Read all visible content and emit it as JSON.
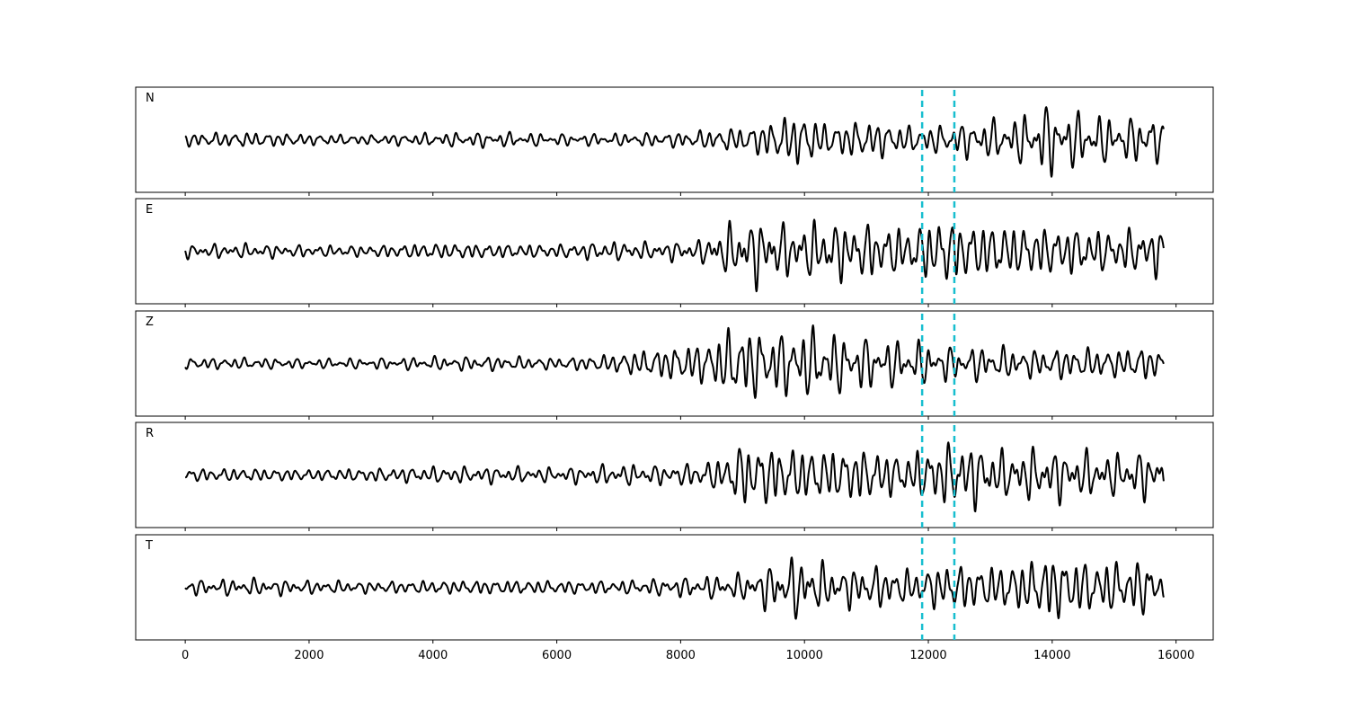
{
  "chart_data": {
    "type": "line",
    "x_ticks": [
      0,
      2000,
      4000,
      6000,
      8000,
      10000,
      12000,
      14000,
      16000
    ],
    "xlim": [
      -800,
      16600
    ],
    "sample_range": [
      0,
      15800
    ],
    "markers": [
      11900,
      12420
    ],
    "marker_color": "#17becf",
    "line_color": "#000000",
    "panels": [
      {
        "label": "N",
        "envelope": [
          [
            0,
            0.14
          ],
          [
            1000,
            0.16
          ],
          [
            2000,
            0.12
          ],
          [
            3000,
            0.1
          ],
          [
            4000,
            0.14
          ],
          [
            5000,
            0.16
          ],
          [
            6000,
            0.12
          ],
          [
            7000,
            0.13
          ],
          [
            8000,
            0.16
          ],
          [
            8600,
            0.22
          ],
          [
            9200,
            0.3
          ],
          [
            9900,
            0.58
          ],
          [
            10400,
            0.32
          ],
          [
            11000,
            0.42
          ],
          [
            11700,
            0.28
          ],
          [
            12200,
            0.3
          ],
          [
            12800,
            0.4
          ],
          [
            13400,
            0.45
          ],
          [
            13900,
            0.75
          ],
          [
            14300,
            0.6
          ],
          [
            14800,
            0.5
          ],
          [
            15300,
            0.45
          ],
          [
            15600,
            0.62
          ],
          [
            15800,
            0.3
          ]
        ]
      },
      {
        "label": "E",
        "envelope": [
          [
            0,
            0.14
          ],
          [
            1000,
            0.15
          ],
          [
            2000,
            0.12
          ],
          [
            3000,
            0.12
          ],
          [
            4000,
            0.17
          ],
          [
            5000,
            0.15
          ],
          [
            6000,
            0.14
          ],
          [
            6800,
            0.2
          ],
          [
            7500,
            0.18
          ],
          [
            8300,
            0.22
          ],
          [
            8700,
            0.5
          ],
          [
            9200,
            0.7
          ],
          [
            9700,
            0.55
          ],
          [
            10400,
            0.62
          ],
          [
            11000,
            0.58
          ],
          [
            11700,
            0.48
          ],
          [
            12200,
            0.72
          ],
          [
            12600,
            0.6
          ],
          [
            13200,
            0.56
          ],
          [
            13700,
            0.52
          ],
          [
            14300,
            0.5
          ],
          [
            15000,
            0.42
          ],
          [
            15700,
            0.52
          ],
          [
            15800,
            0.3
          ]
        ]
      },
      {
        "label": "Z",
        "envelope": [
          [
            0,
            0.12
          ],
          [
            1000,
            0.12
          ],
          [
            2000,
            0.1
          ],
          [
            3000,
            0.11
          ],
          [
            4000,
            0.14
          ],
          [
            5000,
            0.15
          ],
          [
            6000,
            0.12
          ],
          [
            6700,
            0.17
          ],
          [
            7500,
            0.3
          ],
          [
            8400,
            0.45
          ],
          [
            8900,
            0.8
          ],
          [
            9500,
            0.65
          ],
          [
            10100,
            0.75
          ],
          [
            10700,
            0.58
          ],
          [
            11300,
            0.5
          ],
          [
            11900,
            0.45
          ],
          [
            12400,
            0.35
          ],
          [
            13000,
            0.36
          ],
          [
            13600,
            0.3
          ],
          [
            14300,
            0.33
          ],
          [
            15000,
            0.3
          ],
          [
            15600,
            0.36
          ],
          [
            15800,
            0.2
          ]
        ]
      },
      {
        "label": "R",
        "envelope": [
          [
            0,
            0.13
          ],
          [
            1000,
            0.14
          ],
          [
            2000,
            0.12
          ],
          [
            3000,
            0.14
          ],
          [
            4000,
            0.17
          ],
          [
            5000,
            0.17
          ],
          [
            6000,
            0.15
          ],
          [
            7000,
            0.22
          ],
          [
            7900,
            0.2
          ],
          [
            8600,
            0.32
          ],
          [
            9000,
            0.68
          ],
          [
            9600,
            0.6
          ],
          [
            10300,
            0.55
          ],
          [
            11000,
            0.56
          ],
          [
            11600,
            0.42
          ],
          [
            12100,
            0.62
          ],
          [
            12600,
            0.72
          ],
          [
            13200,
            0.5
          ],
          [
            13800,
            0.56
          ],
          [
            14400,
            0.5
          ],
          [
            15000,
            0.44
          ],
          [
            15600,
            0.52
          ],
          [
            15800,
            0.4
          ]
        ]
      },
      {
        "label": "T",
        "envelope": [
          [
            0,
            0.15
          ],
          [
            1000,
            0.18
          ],
          [
            2000,
            0.14
          ],
          [
            3000,
            0.12
          ],
          [
            4000,
            0.14
          ],
          [
            5000,
            0.15
          ],
          [
            6000,
            0.14
          ],
          [
            7000,
            0.14
          ],
          [
            8000,
            0.2
          ],
          [
            9000,
            0.28
          ],
          [
            9900,
            0.66
          ],
          [
            10500,
            0.4
          ],
          [
            11100,
            0.45
          ],
          [
            11800,
            0.35
          ],
          [
            12300,
            0.5
          ],
          [
            12900,
            0.45
          ],
          [
            13500,
            0.52
          ],
          [
            14000,
            0.72
          ],
          [
            14500,
            0.56
          ],
          [
            15100,
            0.55
          ],
          [
            15600,
            0.58
          ],
          [
            15800,
            0.25
          ]
        ]
      }
    ]
  }
}
